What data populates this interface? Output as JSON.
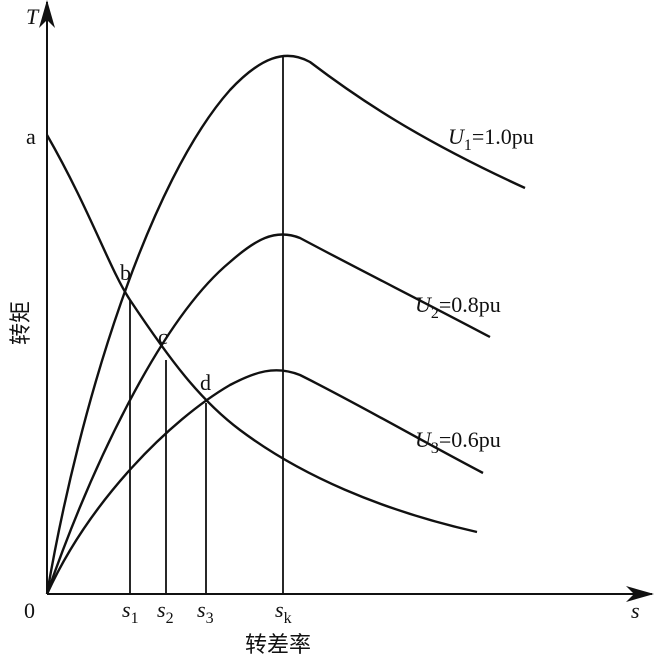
{
  "axes": {
    "y_symbol": "T",
    "x_symbol": "s",
    "origin": "0",
    "y_label": "转矩",
    "x_label": "转差率"
  },
  "points": [
    "a",
    "b",
    "c",
    "d"
  ],
  "slips": [
    {
      "s": "s",
      "sub": "1"
    },
    {
      "s": "s",
      "sub": "2"
    },
    {
      "s": "s",
      "sub": "3"
    },
    {
      "s": "s",
      "sub": "k"
    }
  ],
  "curves": [
    {
      "u": "U",
      "sub": "1",
      "value": "=1.0pu"
    },
    {
      "u": "U",
      "sub": "2",
      "value": "=0.8pu"
    },
    {
      "u": "U",
      "sub": "3",
      "value": "=0.6pu"
    }
  ]
}
